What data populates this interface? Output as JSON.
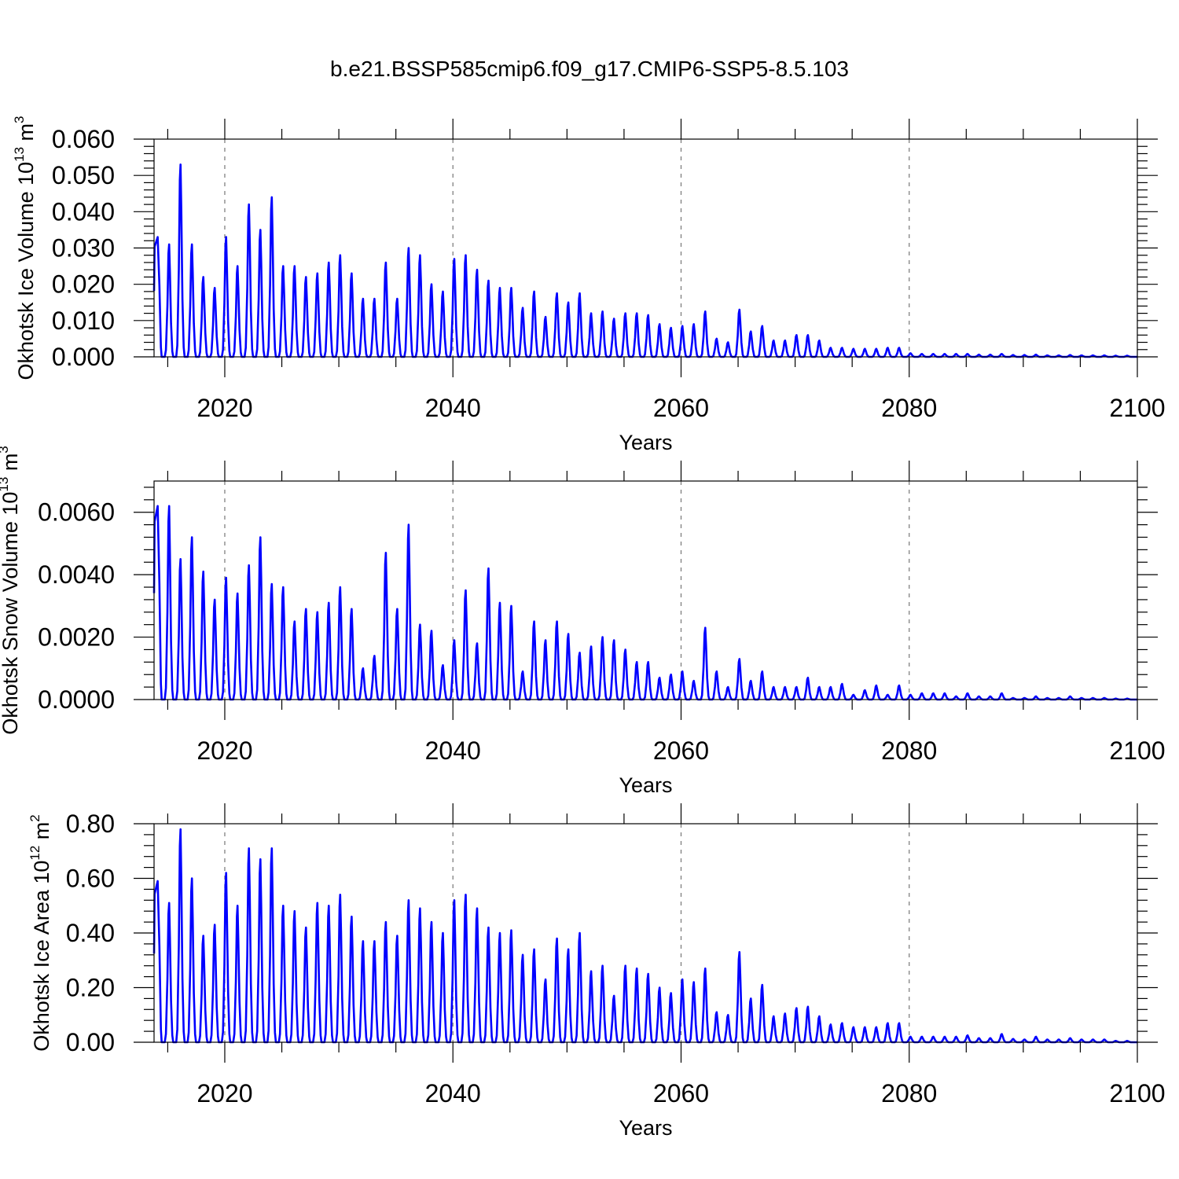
{
  "title": "b.e21.BSSP585cmip6.f09_g17.CMIP6-SSP5-8.5.103",
  "colors": {
    "series": "#0000ff",
    "grid": "#777777",
    "axis": "#000000"
  },
  "chart_data": [
    {
      "type": "line",
      "title": "",
      "xlabel": "Years",
      "ylabel": "Okhotsk Ice Volume 10",
      "ylabel_exp": "13",
      "ylabel_unit": " m",
      "ylabel_unit_exp": "3",
      "xlim": [
        2013.8,
        2100
      ],
      "ylim": [
        0,
        0.06
      ],
      "xticks": [
        2020,
        2040,
        2060,
        2080,
        2100
      ],
      "xtick_labels": [
        "2020",
        "2040",
        "2060",
        "2080",
        "2100"
      ],
      "yticks": [
        0,
        0.01,
        0.02,
        0.03,
        0.04,
        0.05,
        0.06
      ],
      "ytick_labels": [
        "0.000",
        "0.010",
        "0.020",
        "0.030",
        "0.040",
        "0.050",
        "0.060"
      ],
      "grid": "dashed vertical at major x ticks",
      "peak_years": [
        2014,
        2015,
        2016,
        2017,
        2018,
        2019,
        2020,
        2021,
        2022,
        2023,
        2024,
        2025,
        2026,
        2027,
        2028,
        2029,
        2030,
        2031,
        2032,
        2033,
        2034,
        2035,
        2036,
        2037,
        2038,
        2039,
        2040,
        2041,
        2042,
        2043,
        2044,
        2045,
        2046,
        2047,
        2048,
        2049,
        2050,
        2051,
        2052,
        2053,
        2054,
        2055,
        2056,
        2057,
        2058,
        2059,
        2060,
        2061,
        2062,
        2063,
        2064,
        2065,
        2066,
        2067,
        2068,
        2069,
        2070,
        2071,
        2072,
        2073,
        2074,
        2075,
        2076,
        2077,
        2078,
        2079,
        2080,
        2081,
        2082,
        2083,
        2084,
        2085,
        2086,
        2087,
        2088,
        2089,
        2090,
        2091,
        2092,
        2093,
        2094,
        2095,
        2096,
        2097,
        2098,
        2099
      ],
      "peaks": [
        0.033,
        0.031,
        0.053,
        0.031,
        0.022,
        0.019,
        0.033,
        0.025,
        0.042,
        0.035,
        0.044,
        0.025,
        0.025,
        0.022,
        0.023,
        0.026,
        0.028,
        0.023,
        0.016,
        0.016,
        0.026,
        0.016,
        0.03,
        0.028,
        0.02,
        0.018,
        0.027,
        0.028,
        0.024,
        0.021,
        0.019,
        0.019,
        0.0135,
        0.018,
        0.011,
        0.0175,
        0.015,
        0.0175,
        0.012,
        0.0125,
        0.0105,
        0.012,
        0.012,
        0.0115,
        0.009,
        0.008,
        0.0085,
        0.009,
        0.0125,
        0.005,
        0.004,
        0.013,
        0.007,
        0.0085,
        0.0045,
        0.0045,
        0.006,
        0.006,
        0.0045,
        0.0025,
        0.0025,
        0.0022,
        0.0022,
        0.0022,
        0.0025,
        0.0025,
        0.001,
        0.0008,
        0.0008,
        0.0008,
        0.0008,
        0.0008,
        0.0006,
        0.0006,
        0.0008,
        0.0005,
        0.0005,
        0.0006,
        0.0004,
        0.0004,
        0.0005,
        0.0004,
        0.0004,
        0.0004,
        0.0003,
        0.0003
      ],
      "series": [
        {
          "color": "#0000ff"
        }
      ]
    },
    {
      "type": "line",
      "title": "",
      "xlabel": "Years",
      "ylabel": "Okhotsk Snow Volume 10",
      "ylabel_exp": "13",
      "ylabel_unit": " m",
      "ylabel_unit_exp": "3",
      "xlim": [
        2013.8,
        2100
      ],
      "ylim": [
        0,
        0.007
      ],
      "xticks": [
        2020,
        2040,
        2060,
        2080,
        2100
      ],
      "xtick_labels": [
        "2020",
        "2040",
        "2060",
        "2080",
        "2100"
      ],
      "yticks": [
        0,
        0.002,
        0.004,
        0.006
      ],
      "ytick_labels": [
        "0.0000",
        "0.0020",
        "0.0040",
        "0.0060"
      ],
      "grid": "dashed vertical at major x ticks",
      "peak_years": [
        2014,
        2015,
        2016,
        2017,
        2018,
        2019,
        2020,
        2021,
        2022,
        2023,
        2024,
        2025,
        2026,
        2027,
        2028,
        2029,
        2030,
        2031,
        2032,
        2033,
        2034,
        2035,
        2036,
        2037,
        2038,
        2039,
        2040,
        2041,
        2042,
        2043,
        2044,
        2045,
        2046,
        2047,
        2048,
        2049,
        2050,
        2051,
        2052,
        2053,
        2054,
        2055,
        2056,
        2057,
        2058,
        2059,
        2060,
        2061,
        2062,
        2063,
        2064,
        2065,
        2066,
        2067,
        2068,
        2069,
        2070,
        2071,
        2072,
        2073,
        2074,
        2075,
        2076,
        2077,
        2078,
        2079,
        2080,
        2081,
        2082,
        2083,
        2084,
        2085,
        2086,
        2087,
        2088,
        2089,
        2090,
        2091,
        2092,
        2093,
        2094,
        2095,
        2096,
        2097,
        2098,
        2099
      ],
      "peaks": [
        0.0062,
        0.0062,
        0.0045,
        0.0052,
        0.0041,
        0.0032,
        0.0039,
        0.0034,
        0.0043,
        0.0052,
        0.0037,
        0.0036,
        0.0025,
        0.0029,
        0.0028,
        0.0031,
        0.0036,
        0.0029,
        0.001,
        0.0014,
        0.0047,
        0.0029,
        0.0056,
        0.0024,
        0.0022,
        0.0011,
        0.0019,
        0.0035,
        0.0018,
        0.0042,
        0.0031,
        0.003,
        0.0009,
        0.0025,
        0.0019,
        0.0025,
        0.0021,
        0.0015,
        0.0017,
        0.002,
        0.0019,
        0.0016,
        0.0012,
        0.0012,
        0.0007,
        0.0008,
        0.0009,
        0.0006,
        0.0023,
        0.0009,
        0.0004,
        0.0013,
        0.0006,
        0.0009,
        0.0004,
        0.0004,
        0.0004,
        0.0007,
        0.0004,
        0.0004,
        0.0005,
        0.00015,
        0.0003,
        0.00045,
        0.00015,
        0.00045,
        0.00015,
        0.0002,
        0.0002,
        0.0002,
        0.0001,
        0.0002,
        0.0001,
        0.0001,
        0.0002,
        5e-05,
        5e-05,
        0.0001,
        5e-05,
        5e-05,
        0.0001,
        5e-05,
        5e-05,
        5e-05,
        3e-05,
        3e-05
      ],
      "series": [
        {
          "color": "#0000ff"
        }
      ]
    },
    {
      "type": "line",
      "title": "",
      "xlabel": "Years",
      "ylabel": "Okhotsk Ice Area 10",
      "ylabel_exp": "12",
      "ylabel_unit": " m",
      "ylabel_unit_exp": "2",
      "xlim": [
        2013.8,
        2100
      ],
      "ylim": [
        0,
        0.8
      ],
      "xticks": [
        2020,
        2040,
        2060,
        2080,
        2100
      ],
      "xtick_labels": [
        "2020",
        "2040",
        "2060",
        "2080",
        "2100"
      ],
      "yticks": [
        0,
        0.2,
        0.4,
        0.6,
        0.8
      ],
      "ytick_labels": [
        "0.00",
        "0.20",
        "0.40",
        "0.60",
        "0.80"
      ],
      "grid": "dashed vertical at major x ticks",
      "peak_years": [
        2014,
        2015,
        2016,
        2017,
        2018,
        2019,
        2020,
        2021,
        2022,
        2023,
        2024,
        2025,
        2026,
        2027,
        2028,
        2029,
        2030,
        2031,
        2032,
        2033,
        2034,
        2035,
        2036,
        2037,
        2038,
        2039,
        2040,
        2041,
        2042,
        2043,
        2044,
        2045,
        2046,
        2047,
        2048,
        2049,
        2050,
        2051,
        2052,
        2053,
        2054,
        2055,
        2056,
        2057,
        2058,
        2059,
        2060,
        2061,
        2062,
        2063,
        2064,
        2065,
        2066,
        2067,
        2068,
        2069,
        2070,
        2071,
        2072,
        2073,
        2074,
        2075,
        2076,
        2077,
        2078,
        2079,
        2080,
        2081,
        2082,
        2083,
        2084,
        2085,
        2086,
        2087,
        2088,
        2089,
        2090,
        2091,
        2092,
        2093,
        2094,
        2095,
        2096,
        2097,
        2098,
        2099
      ],
      "peaks": [
        0.59,
        0.51,
        0.78,
        0.6,
        0.39,
        0.43,
        0.62,
        0.5,
        0.71,
        0.67,
        0.71,
        0.5,
        0.48,
        0.42,
        0.51,
        0.5,
        0.54,
        0.46,
        0.37,
        0.37,
        0.44,
        0.39,
        0.52,
        0.49,
        0.44,
        0.4,
        0.52,
        0.54,
        0.49,
        0.42,
        0.4,
        0.41,
        0.32,
        0.34,
        0.23,
        0.38,
        0.34,
        0.4,
        0.26,
        0.28,
        0.17,
        0.28,
        0.27,
        0.25,
        0.2,
        0.18,
        0.23,
        0.22,
        0.27,
        0.11,
        0.1,
        0.33,
        0.16,
        0.21,
        0.095,
        0.105,
        0.125,
        0.13,
        0.095,
        0.065,
        0.07,
        0.055,
        0.055,
        0.055,
        0.07,
        0.07,
        0.02,
        0.02,
        0.02,
        0.02,
        0.02,
        0.025,
        0.015,
        0.015,
        0.03,
        0.012,
        0.01,
        0.02,
        0.01,
        0.01,
        0.015,
        0.01,
        0.01,
        0.01,
        0.005,
        0.005
      ],
      "series": [
        {
          "color": "#0000ff"
        }
      ]
    }
  ]
}
